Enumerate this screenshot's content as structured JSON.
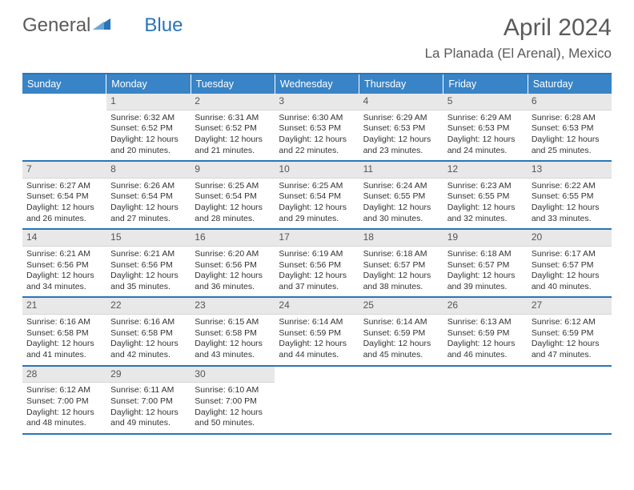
{
  "brand": {
    "part1": "General",
    "part2": "Blue"
  },
  "title": "April 2024",
  "location": "La Planada (El Arenal), Mexico",
  "colors": {
    "header_bg": "#3884c7",
    "border": "#2a74b8",
    "daynum_bg": "#e8e8e8",
    "text": "#333333",
    "title_text": "#5a5a5a"
  },
  "fonts": {
    "body_pt": 10.5,
    "title_pt": 30,
    "location_pt": 17,
    "dayhead_pt": 12.5
  },
  "day_headers": [
    "Sunday",
    "Monday",
    "Tuesday",
    "Wednesday",
    "Thursday",
    "Friday",
    "Saturday"
  ],
  "weeks": [
    [
      {
        "n": "",
        "sr": "",
        "ss": "",
        "dl": ""
      },
      {
        "n": "1",
        "sr": "6:32 AM",
        "ss": "6:52 PM",
        "dl": "12 hours and 20 minutes."
      },
      {
        "n": "2",
        "sr": "6:31 AM",
        "ss": "6:52 PM",
        "dl": "12 hours and 21 minutes."
      },
      {
        "n": "3",
        "sr": "6:30 AM",
        "ss": "6:53 PM",
        "dl": "12 hours and 22 minutes."
      },
      {
        "n": "4",
        "sr": "6:29 AM",
        "ss": "6:53 PM",
        "dl": "12 hours and 23 minutes."
      },
      {
        "n": "5",
        "sr": "6:29 AM",
        "ss": "6:53 PM",
        "dl": "12 hours and 24 minutes."
      },
      {
        "n": "6",
        "sr": "6:28 AM",
        "ss": "6:53 PM",
        "dl": "12 hours and 25 minutes."
      }
    ],
    [
      {
        "n": "7",
        "sr": "6:27 AM",
        "ss": "6:54 PM",
        "dl": "12 hours and 26 minutes."
      },
      {
        "n": "8",
        "sr": "6:26 AM",
        "ss": "6:54 PM",
        "dl": "12 hours and 27 minutes."
      },
      {
        "n": "9",
        "sr": "6:25 AM",
        "ss": "6:54 PM",
        "dl": "12 hours and 28 minutes."
      },
      {
        "n": "10",
        "sr": "6:25 AM",
        "ss": "6:54 PM",
        "dl": "12 hours and 29 minutes."
      },
      {
        "n": "11",
        "sr": "6:24 AM",
        "ss": "6:55 PM",
        "dl": "12 hours and 30 minutes."
      },
      {
        "n": "12",
        "sr": "6:23 AM",
        "ss": "6:55 PM",
        "dl": "12 hours and 32 minutes."
      },
      {
        "n": "13",
        "sr": "6:22 AM",
        "ss": "6:55 PM",
        "dl": "12 hours and 33 minutes."
      }
    ],
    [
      {
        "n": "14",
        "sr": "6:21 AM",
        "ss": "6:56 PM",
        "dl": "12 hours and 34 minutes."
      },
      {
        "n": "15",
        "sr": "6:21 AM",
        "ss": "6:56 PM",
        "dl": "12 hours and 35 minutes."
      },
      {
        "n": "16",
        "sr": "6:20 AM",
        "ss": "6:56 PM",
        "dl": "12 hours and 36 minutes."
      },
      {
        "n": "17",
        "sr": "6:19 AM",
        "ss": "6:56 PM",
        "dl": "12 hours and 37 minutes."
      },
      {
        "n": "18",
        "sr": "6:18 AM",
        "ss": "6:57 PM",
        "dl": "12 hours and 38 minutes."
      },
      {
        "n": "19",
        "sr": "6:18 AM",
        "ss": "6:57 PM",
        "dl": "12 hours and 39 minutes."
      },
      {
        "n": "20",
        "sr": "6:17 AM",
        "ss": "6:57 PM",
        "dl": "12 hours and 40 minutes."
      }
    ],
    [
      {
        "n": "21",
        "sr": "6:16 AM",
        "ss": "6:58 PM",
        "dl": "12 hours and 41 minutes."
      },
      {
        "n": "22",
        "sr": "6:16 AM",
        "ss": "6:58 PM",
        "dl": "12 hours and 42 minutes."
      },
      {
        "n": "23",
        "sr": "6:15 AM",
        "ss": "6:58 PM",
        "dl": "12 hours and 43 minutes."
      },
      {
        "n": "24",
        "sr": "6:14 AM",
        "ss": "6:59 PM",
        "dl": "12 hours and 44 minutes."
      },
      {
        "n": "25",
        "sr": "6:14 AM",
        "ss": "6:59 PM",
        "dl": "12 hours and 45 minutes."
      },
      {
        "n": "26",
        "sr": "6:13 AM",
        "ss": "6:59 PM",
        "dl": "12 hours and 46 minutes."
      },
      {
        "n": "27",
        "sr": "6:12 AM",
        "ss": "6:59 PM",
        "dl": "12 hours and 47 minutes."
      }
    ],
    [
      {
        "n": "28",
        "sr": "6:12 AM",
        "ss": "7:00 PM",
        "dl": "12 hours and 48 minutes."
      },
      {
        "n": "29",
        "sr": "6:11 AM",
        "ss": "7:00 PM",
        "dl": "12 hours and 49 minutes."
      },
      {
        "n": "30",
        "sr": "6:10 AM",
        "ss": "7:00 PM",
        "dl": "12 hours and 50 minutes."
      },
      {
        "n": "",
        "sr": "",
        "ss": "",
        "dl": ""
      },
      {
        "n": "",
        "sr": "",
        "ss": "",
        "dl": ""
      },
      {
        "n": "",
        "sr": "",
        "ss": "",
        "dl": ""
      },
      {
        "n": "",
        "sr": "",
        "ss": "",
        "dl": ""
      }
    ]
  ],
  "labels": {
    "sunrise": "Sunrise:",
    "sunset": "Sunset:",
    "daylight": "Daylight:"
  }
}
